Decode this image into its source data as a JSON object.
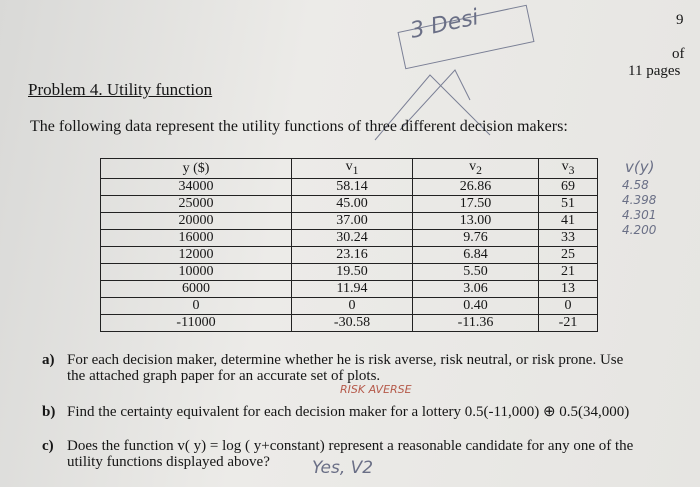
{
  "page": {
    "number": "9",
    "of": "of",
    "pages": "11 pages"
  },
  "problem": {
    "title": "Problem 4. Utility function",
    "intro": "The following data represent the utility functions of three different decision makers:"
  },
  "table": {
    "header": [
      {
        "text": "y ($)"
      },
      {
        "text": "v",
        "sub": "1"
      },
      {
        "text": "v",
        "sub": "2"
      },
      {
        "text": "v",
        "sub": "3"
      }
    ],
    "rows": [
      [
        "34000",
        "58.14",
        "26.86",
        "69"
      ],
      [
        "25000",
        "45.00",
        "17.50",
        "51"
      ],
      [
        "20000",
        "37.00",
        "13.00",
        "41"
      ],
      [
        "16000",
        "30.24",
        "9.76",
        "33"
      ],
      [
        "12000",
        "23.16",
        "6.84",
        "25"
      ],
      [
        "10000",
        "19.50",
        "5.50",
        "21"
      ],
      [
        "6000",
        "11.94",
        "3.06",
        "13"
      ],
      [
        "0",
        "0",
        "0.40",
        "0"
      ],
      [
        "-11000",
        "-30.58",
        "-11.36",
        "-21"
      ]
    ]
  },
  "questions": [
    {
      "label": "a)",
      "lines": [
        "For each decision maker, determine whether he is risk averse, risk neutral, or risk prone. Use",
        "the attached graph paper for an accurate set of plots."
      ]
    },
    {
      "label": "b)",
      "lines": [
        "Find the certainty equivalent for each decision maker for a lottery 0.5(-11,000) ⊕ 0.5(34,000)"
      ]
    },
    {
      "label": "c)",
      "lines": [
        "Does the function v( y) = log ( y+constant) represent a reasonable candidate for any one of the",
        "utility functions displayed above?"
      ]
    }
  ],
  "handwriting": {
    "corner": "3 Desi",
    "vy": "v(y)",
    "notes": [
      "4.58",
      "4.398",
      "4.301",
      "4.200"
    ],
    "answer_a": "RISK AVERSE",
    "answer_c": "Yes, V2"
  }
}
